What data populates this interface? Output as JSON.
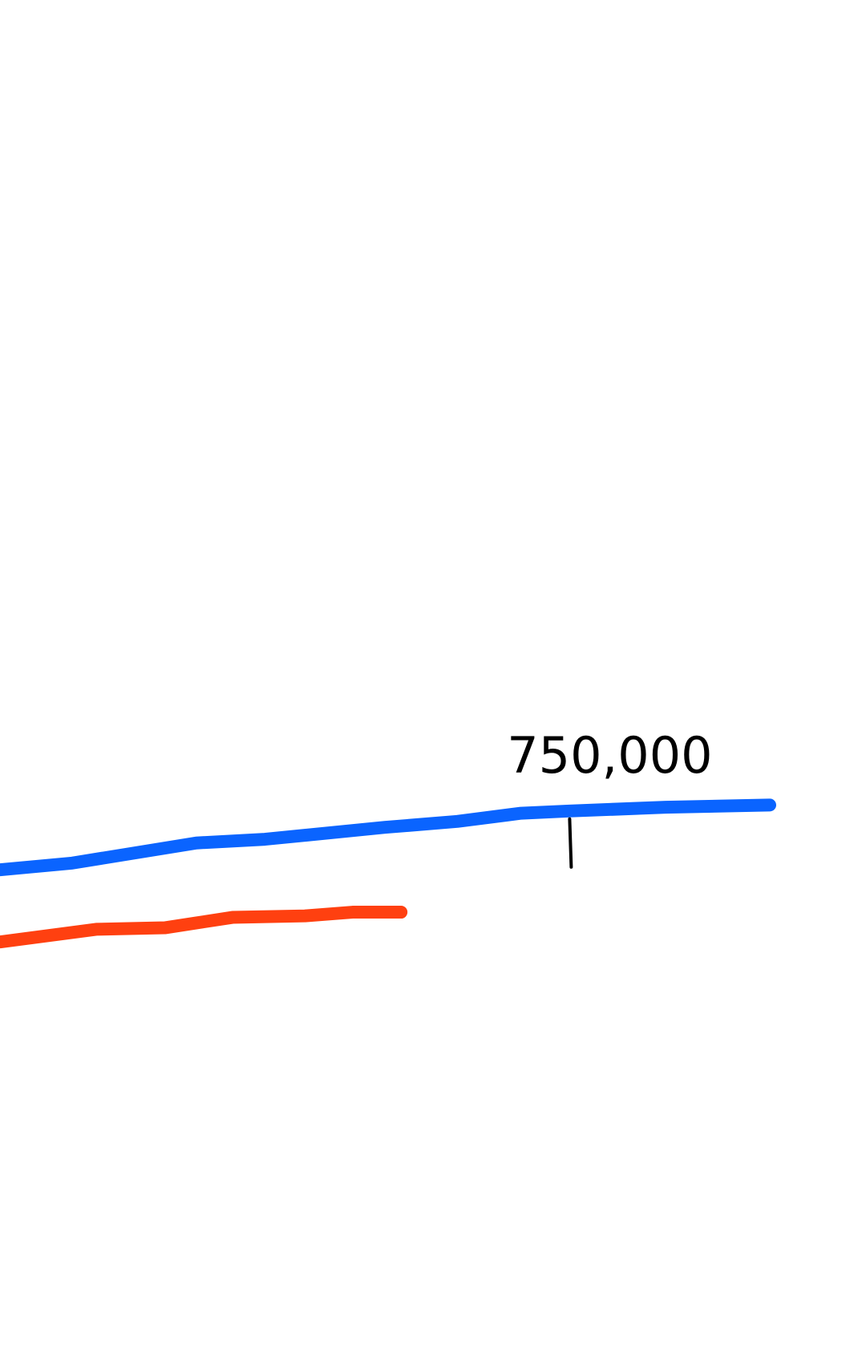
{
  "chart_data": {
    "type": "line",
    "title": "",
    "xlabel": "",
    "ylabel": "",
    "grid": false,
    "xlim": [
      0,
      112.5
    ],
    "ylim": [
      0,
      1840000
    ],
    "series": [
      {
        "color": "#0a64ff",
        "x": [
          0,
          9.4,
          25.5,
          34.4,
          50,
          59.4,
          67.7,
          74,
          86.5,
          100
        ],
        "y": [
          671000,
          680000,
          707000,
          712000,
          728000,
          736000,
          747000,
          750000,
          755000,
          758000
        ]
      },
      {
        "color": "#ff4010",
        "x": [
          0,
          12.5,
          21.4,
          30.2,
          39.6,
          45.8,
          52.1
        ],
        "y": [
          574000,
          591000,
          593000,
          607000,
          609000,
          614000,
          614000
        ]
      }
    ],
    "annotations": [
      {
        "text": "750,000",
        "x": 74,
        "y": 750000
      }
    ]
  }
}
